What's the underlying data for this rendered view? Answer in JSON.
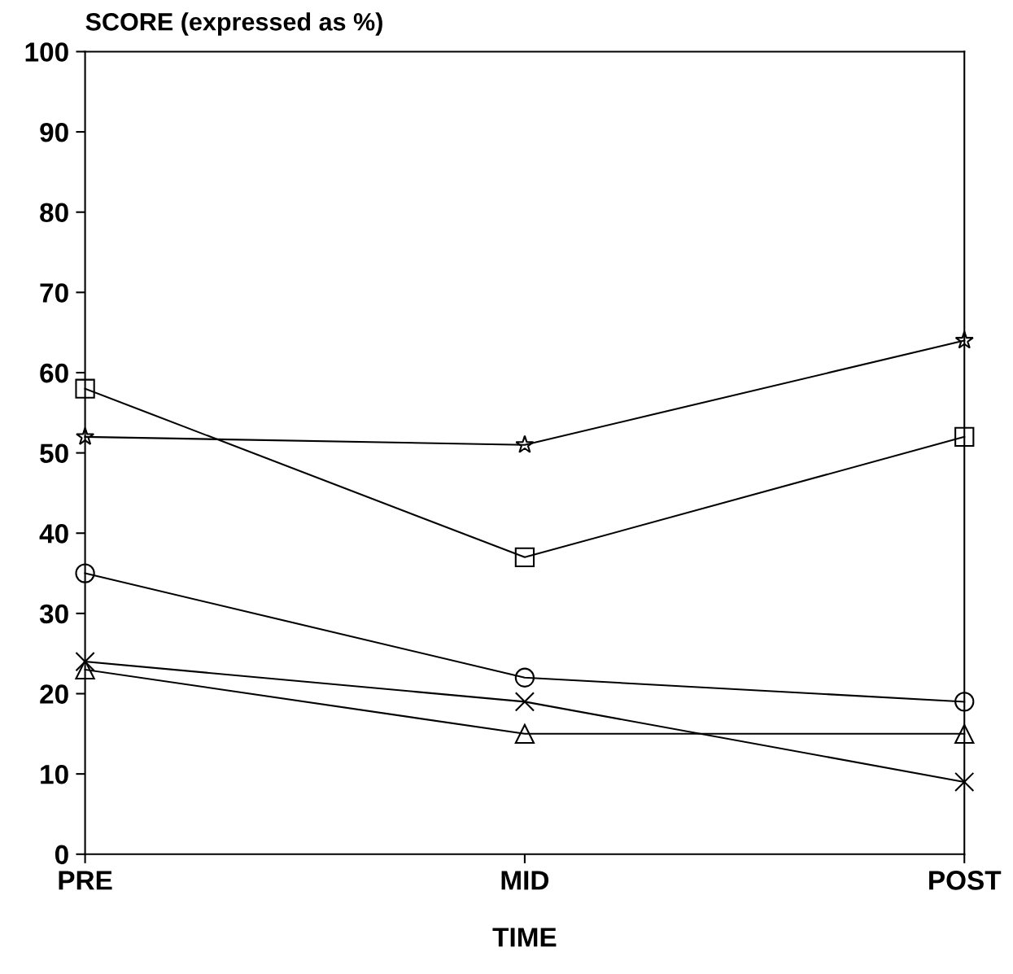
{
  "chart_data": {
    "type": "line",
    "ylabel": "SCORE (expressed as %)",
    "xlabel": "TIME",
    "categories": [
      "PRE",
      "MID",
      "POST"
    ],
    "series": [
      {
        "color": "#000000",
        "marker": "square",
        "values": [
          58,
          37,
          52
        ]
      },
      {
        "color": "#000000",
        "marker": "star",
        "values": [
          52,
          51,
          64
        ]
      },
      {
        "color": "#000000",
        "marker": "circle",
        "values": [
          35,
          22,
          19
        ]
      },
      {
        "color": "#000000",
        "marker": "cross",
        "values": [
          24,
          19,
          9
        ]
      },
      {
        "color": "#000000",
        "marker": "triangle",
        "values": [
          23,
          15,
          15
        ]
      }
    ],
    "ylim": [
      0,
      100
    ],
    "yticks": [
      0,
      10,
      20,
      30,
      40,
      50,
      60,
      70,
      80,
      90,
      100
    ],
    "grid": false,
    "legend": false,
    "line_style": "solid"
  }
}
